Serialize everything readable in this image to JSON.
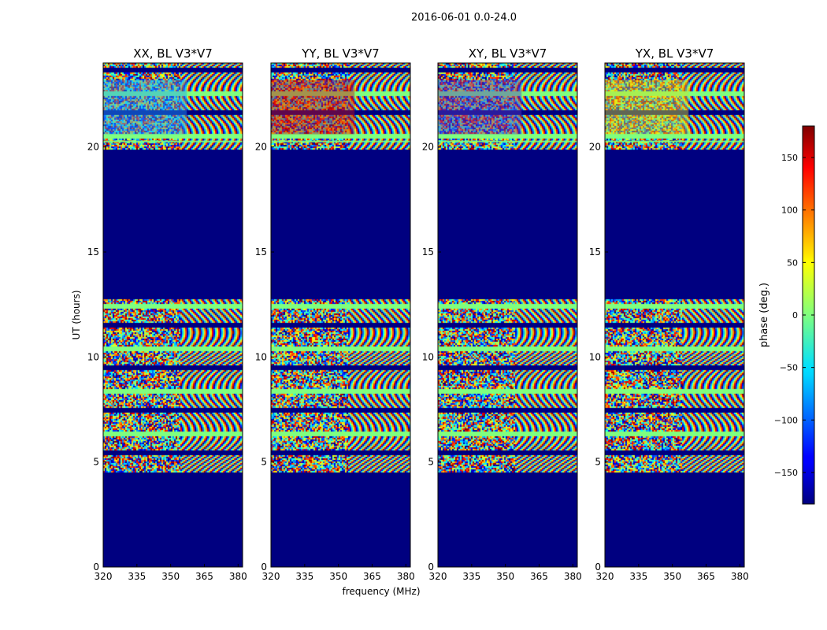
{
  "suptitle": "2016-06-01 0.0-24.0",
  "chart_data": [
    {
      "type": "heatmap",
      "title": "XX, BL V3*V7",
      "xlabel": "",
      "ylabel": "UT (hours)",
      "xlim": [
        320,
        382
      ],
      "ylim": [
        0,
        24
      ],
      "xticks": [
        "320",
        "335",
        "350",
        "365",
        "380"
      ],
      "yticks": [
        "0",
        "5",
        "10",
        "15",
        "20"
      ],
      "tint": "#1fa0ff"
    },
    {
      "type": "heatmap",
      "title": "YY, BL V3*V7",
      "xlabel": "frequency (MHz)",
      "ylabel": "",
      "xlim": [
        320,
        382
      ],
      "ylim": [
        0,
        24
      ],
      "xticks": [
        "320",
        "335",
        "350",
        "365",
        "380"
      ],
      "yticks": [
        "0",
        "5",
        "10",
        "15",
        "20"
      ],
      "tint": "#d01010"
    },
    {
      "type": "heatmap",
      "title": "XY, BL V3*V7",
      "xlabel": "",
      "ylabel": "",
      "xlim": [
        320,
        382
      ],
      "ylim": [
        0,
        24
      ],
      "xticks": [
        "320",
        "335",
        "350",
        "365",
        "380"
      ],
      "yticks": [
        "0",
        "5",
        "10",
        "15",
        "20"
      ],
      "tint": "#5a3cc0"
    },
    {
      "type": "heatmap",
      "title": "YX, BL V3*V7",
      "xlabel": "",
      "ylabel": "",
      "xlim": [
        320,
        382
      ],
      "ylim": [
        0,
        24
      ],
      "xticks": [
        "320",
        "335",
        "350",
        "365",
        "380"
      ],
      "yticks": [
        "0",
        "5",
        "10",
        "15",
        "20"
      ],
      "tint": "#d8e020"
    }
  ],
  "colorbar": {
    "label": "phase (deg.)",
    "range": [
      -180,
      180
    ],
    "ticks": [
      "150",
      "100",
      "50",
      "0",
      "−50",
      "−100",
      "−150"
    ],
    "colormap": "jet"
  },
  "data_description": {
    "masked_value_color": "#000080",
    "masked_ranges_hours": [
      [
        0,
        4.5
      ],
      [
        12.8,
        19.9
      ]
    ],
    "horizontal_band_color": "#7fff7f"
  }
}
